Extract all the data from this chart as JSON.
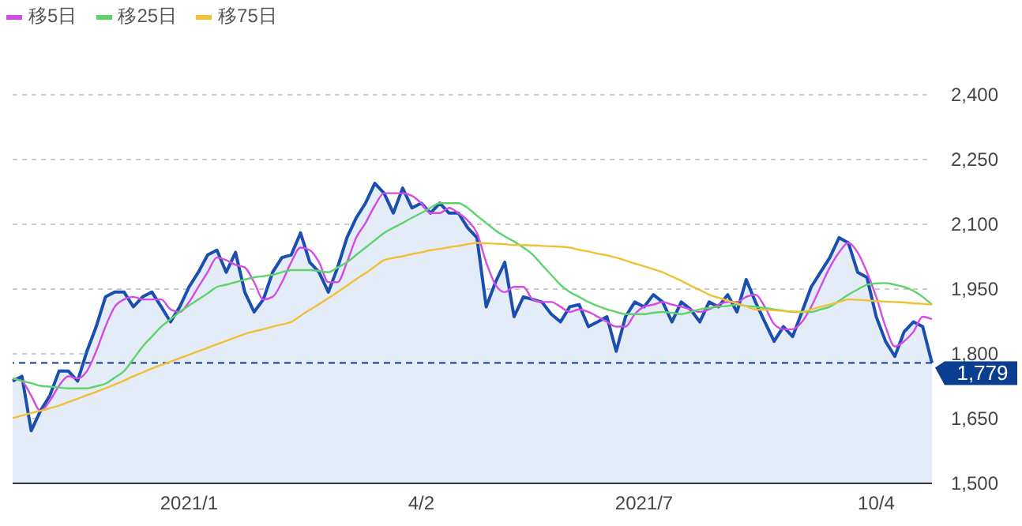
{
  "chart_data": {
    "type": "line",
    "categories": [
      null,
      null,
      null,
      null,
      null,
      null,
      null,
      null,
      null,
      null,
      null,
      null,
      null,
      null,
      null,
      null,
      null,
      null,
      null,
      "2021/1",
      null,
      null,
      null,
      null,
      null,
      null,
      null,
      null,
      null,
      null,
      null,
      null,
      null,
      null,
      null,
      null,
      null,
      null,
      null,
      null,
      null,
      null,
      null,
      null,
      "4/2",
      null,
      null,
      null,
      null,
      null,
      null,
      null,
      null,
      null,
      null,
      null,
      null,
      null,
      null,
      null,
      null,
      null,
      null,
      null,
      null,
      null,
      null,
      null,
      "2021/7",
      null,
      null,
      null,
      null,
      null,
      null,
      null,
      null,
      null,
      null,
      null,
      null,
      null,
      null,
      null,
      null,
      null,
      null,
      null,
      null,
      null,
      null,
      null,
      null,
      "10/4",
      null,
      null,
      null,
      null,
      null,
      null
    ],
    "series": [
      {
        "type": "area",
        "color": "#1a4fb0",
        "values": [
          1737,
          1748,
          1622,
          1668,
          1703,
          1760,
          1760,
          1737,
          1806,
          1863,
          1932,
          1943,
          1943,
          1909,
          1932,
          1943,
          1909,
          1874,
          1909,
          1955,
          1989,
          2029,
          2040,
          1989,
          2035,
          1943,
          1897,
          1926,
          1989,
          2023,
          2029,
          2080,
          2012,
          1989,
          1943,
          2000,
          2069,
          2115,
          2149,
          2195,
          2172,
          2126,
          2184,
          2138,
          2149,
          2126,
          2149,
          2126,
          2126,
          2092,
          2069,
          1909,
          1966,
          2012,
          1886,
          1932,
          1926,
          1920,
          1892,
          1874,
          1909,
          1914,
          1863,
          1874,
          1886,
          1806,
          1886,
          1920,
          1909,
          1937,
          1920,
          1874,
          1920,
          1903,
          1874,
          1920,
          1909,
          1937,
          1897,
          1972,
          1920,
          1874,
          1829,
          1863,
          1840,
          1897,
          1955,
          1989,
          2023,
          2069,
          2057,
          1989,
          1977,
          1886,
          1829,
          1794,
          1851,
          1874,
          1863,
          1779
        ]
      },
      {
        "name": "移5日",
        "color": "#d24be6",
        "values": [
          1743,
          1737,
          1703,
          1668,
          1691,
          1726,
          1748,
          1743,
          1760,
          1806,
          1863,
          1909,
          1926,
          1932,
          1926,
          1926,
          1926,
          1903,
          1897,
          1920,
          1955,
          1989,
          2023,
          2017,
          2006,
          2000,
          1966,
          1926,
          1932,
          1966,
          2012,
          2046,
          2040,
          2012,
          1966,
          1966,
          2012,
          2069,
          2103,
          2143,
          2172,
          2172,
          2172,
          2166,
          2149,
          2126,
          2126,
          2138,
          2126,
          2109,
          2080,
          2012,
          1960,
          1943,
          1955,
          1955,
          1926,
          1920,
          1920,
          1909,
          1897,
          1903,
          1897,
          1886,
          1874,
          1863,
          1863,
          1892,
          1909,
          1914,
          1920,
          1914,
          1909,
          1903,
          1897,
          1903,
          1914,
          1920,
          1920,
          1932,
          1937,
          1909,
          1869,
          1857,
          1857,
          1874,
          1909,
          1955,
          2000,
          2035,
          2057,
          2035,
          1989,
          1932,
          1863,
          1817,
          1829,
          1851,
          1886,
          1880
        ]
      },
      {
        "name": "移25日",
        "color": "#5fd36b",
        "values": [
          1743,
          1737,
          1732,
          1726,
          1724,
          1722,
          1720,
          1720,
          1720,
          1725,
          1731,
          1745,
          1760,
          1788,
          1817,
          1840,
          1863,
          1880,
          1897,
          1912,
          1926,
          1940,
          1955,
          1960,
          1966,
          1972,
          1977,
          1980,
          1983,
          1989,
          1994,
          1994,
          1994,
          1992,
          1989,
          2000,
          2012,
          2029,
          2046,
          2063,
          2080,
          2092,
          2103,
          2115,
          2126,
          2138,
          2149,
          2149,
          2149,
          2138,
          2120,
          2103,
          2086,
          2072,
          2060,
          2046,
          2030,
          2006,
          1983,
          1960,
          1943,
          1932,
          1920,
          1911,
          1903,
          1897,
          1892,
          1892,
          1892,
          1895,
          1897,
          1895,
          1892,
          1897,
          1903,
          1906,
          1909,
          1911,
          1914,
          1911,
          1909,
          1906,
          1903,
          1900,
          1897,
          1897,
          1897,
          1903,
          1909,
          1923,
          1937,
          1949,
          1960,
          1963,
          1964,
          1960,
          1955,
          1946,
          1932,
          1914
        ]
      },
      {
        "name": "移75日",
        "color": "#f2c037",
        "values": [
          1651,
          1657,
          1663,
          1668,
          1674,
          1680,
          1688,
          1696,
          1704,
          1712,
          1720,
          1729,
          1738,
          1748,
          1757,
          1766,
          1774,
          1782,
          1790,
          1798,
          1806,
          1814,
          1822,
          1830,
          1838,
          1846,
          1852,
          1857,
          1863,
          1868,
          1874,
          1888,
          1902,
          1915,
          1929,
          1943,
          1958,
          1973,
          1987,
          2002,
          2017,
          2022,
          2026,
          2031,
          2035,
          2040,
          2043,
          2047,
          2050,
          2054,
          2057,
          2056,
          2055,
          2054,
          2052,
          2052,
          2051,
          2050,
          2049,
          2048,
          2046,
          2041,
          2037,
          2032,
          2028,
          2023,
          2016,
          2009,
          2003,
          1996,
          1989,
          1979,
          1969,
          1958,
          1948,
          1937,
          1930,
          1923,
          1917,
          1910,
          1903,
          1902,
          1901,
          1899,
          1898,
          1897,
          1903,
          1909,
          1914,
          1920,
          1926,
          1925,
          1924,
          1922,
          1921,
          1920,
          1919,
          1917,
          1916,
          1914
        ]
      }
    ],
    "ylim": [
      1500,
      2400
    ],
    "yticks": [
      {
        "value": 1500,
        "label": "1,500"
      },
      {
        "value": 1650,
        "label": "1,650"
      },
      {
        "value": 1800,
        "label": "1,800"
      },
      {
        "value": 1950,
        "label": "1,950"
      },
      {
        "value": 2100,
        "label": "2,100"
      },
      {
        "value": 2250,
        "label": "2,250"
      },
      {
        "value": 2400,
        "label": "2,400"
      }
    ],
    "ref_lines": [
      {
        "axis": "y",
        "value": 1779,
        "label": "1,779",
        "color": "#0b3d91",
        "line_style": "dashed"
      }
    ],
    "grid": "y",
    "legend": "top left",
    "marker": "none",
    "line_style": "solid"
  }
}
